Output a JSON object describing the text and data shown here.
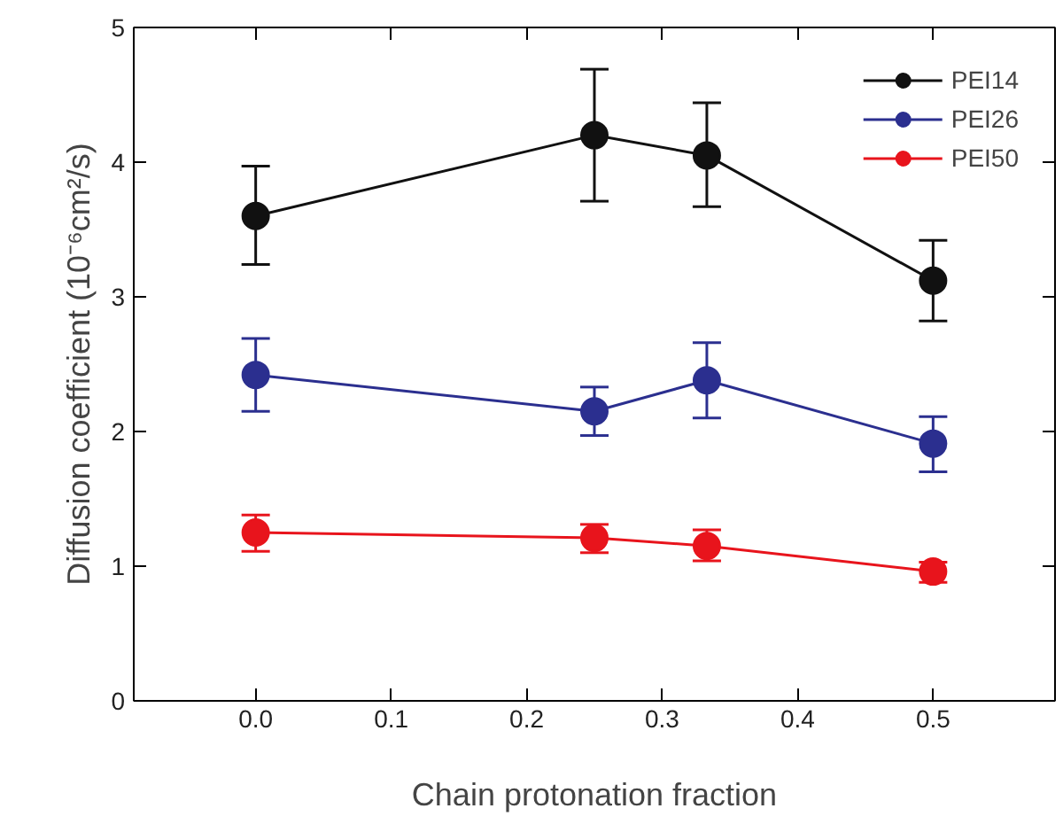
{
  "chart_data": {
    "type": "line",
    "xlabel": "Chain protonation fraction",
    "ylabel": "Diffusion coefficient (10⁻⁶cm²/s)",
    "x": [
      0,
      0.25,
      0.333,
      0.5
    ],
    "series": [
      {
        "name": "PEI14",
        "color": "#111111",
        "values": [
          3.6,
          4.2,
          4.05,
          3.12
        ],
        "errors": [
          [
            3.24,
            3.97
          ],
          [
            3.71,
            4.69
          ],
          [
            3.67,
            4.44
          ],
          [
            2.82,
            3.42
          ]
        ]
      },
      {
        "name": "PEI26",
        "color": "#2b2f8f",
        "values": [
          2.42,
          2.15,
          2.38,
          1.91
        ],
        "errors": [
          [
            2.15,
            2.69
          ],
          [
            1.97,
            2.33
          ],
          [
            2.1,
            2.66
          ],
          [
            1.7,
            2.11
          ]
        ]
      },
      {
        "name": "PEI50",
        "color": "#e8141c",
        "values": [
          1.25,
          1.21,
          1.15,
          0.96
        ],
        "errors": [
          [
            1.11,
            1.38
          ],
          [
            1.1,
            1.31
          ],
          [
            1.04,
            1.27
          ],
          [
            0.88,
            1.03
          ]
        ]
      }
    ],
    "xlim": [
      -0.09,
      0.59
    ],
    "ylim": [
      0,
      5
    ],
    "xticks": [
      {
        "value": 0,
        "label": "0.0"
      },
      0.1,
      0.2,
      0.3,
      0.4,
      0.5
    ],
    "yticks": [
      0,
      1,
      2,
      3,
      4,
      5
    ],
    "grid": false,
    "legend": "top right",
    "marker": "circle",
    "line_style": "solid"
  }
}
